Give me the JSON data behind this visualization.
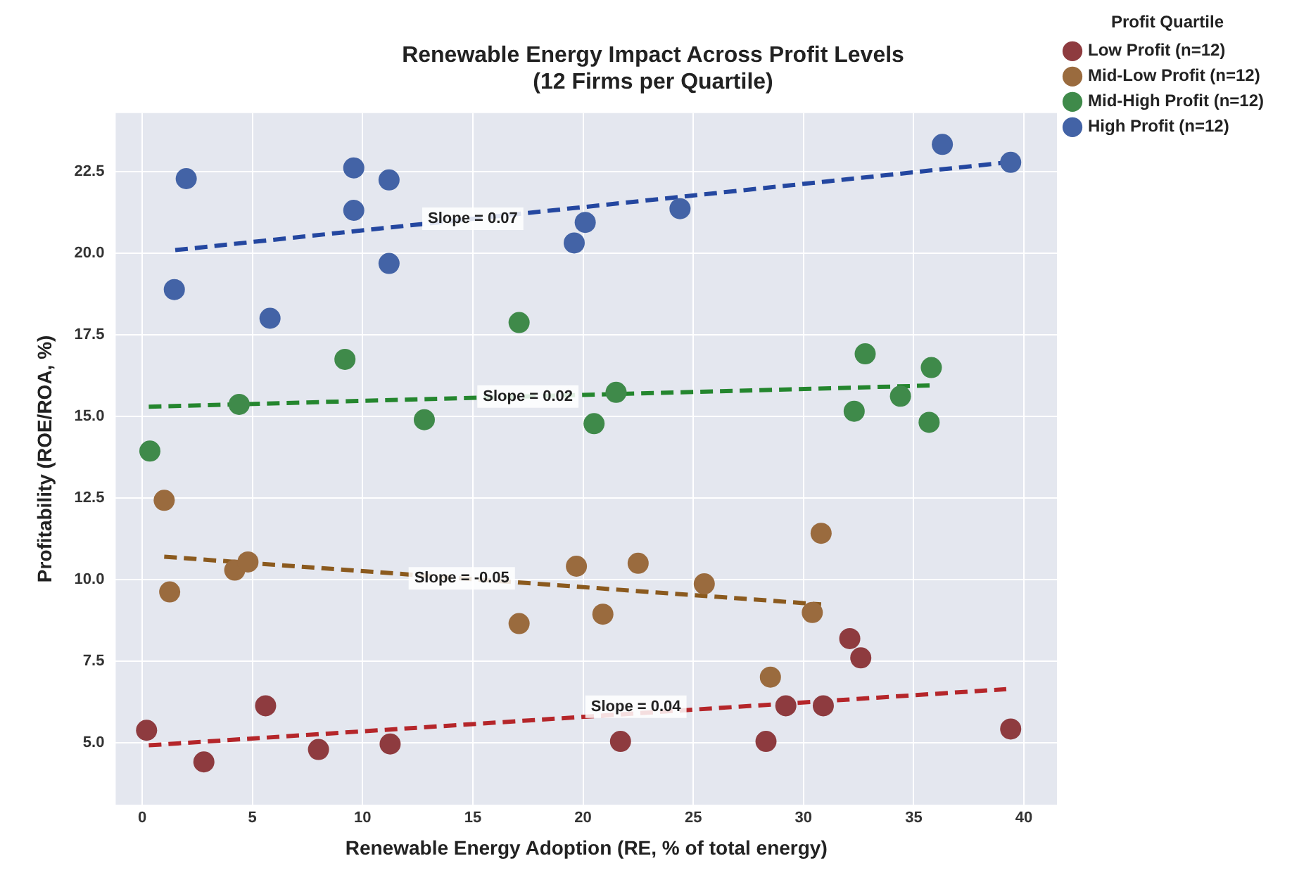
{
  "chart_data": {
    "type": "scatter",
    "title": "Renewable Energy Impact Across Profit Levels\n(12 Firms per Quartile)",
    "xlabel": "Renewable Energy Adoption (RE, % of total energy)",
    "ylabel": "Profitability (ROE/ROA, %)",
    "legend_title": "Profit Quartile",
    "legend": "right",
    "grid": true,
    "marker": "circle",
    "xlim": [
      -1.2,
      41.5
    ],
    "ylim": [
      3.1,
      24.3
    ],
    "xticks": [
      0,
      5,
      10,
      15,
      20,
      25,
      30,
      35,
      40
    ],
    "yticks": [
      {
        "value": 5,
        "label": "5.0"
      },
      {
        "value": 7.5,
        "label": "7.5"
      },
      {
        "value": 10,
        "label": "10.0"
      },
      {
        "value": 12.5,
        "label": "12.5"
      },
      {
        "value": 15,
        "label": "15.0"
      },
      {
        "value": 17.5,
        "label": "17.5"
      },
      {
        "value": 20,
        "label": "20.0"
      },
      {
        "value": 22.5,
        "label": "22.5"
      }
    ],
    "series": [
      {
        "name": "Low Profit (n=12)",
        "color": "#8e3b3f",
        "x": [
          0.2,
          2.8,
          5.6,
          8.0,
          11.25,
          21.7,
          28.3,
          29.2,
          30.9,
          32.1,
          32.6,
          39.4
        ],
        "values": [
          5.38,
          4.41,
          6.13,
          4.79,
          4.96,
          5.04,
          5.04,
          6.13,
          6.13,
          8.19,
          7.6,
          5.42
        ]
      },
      {
        "name": "Mid-Low Profit (n=12)",
        "color": "#9a6b3e",
        "x": [
          1.0,
          1.25,
          4.2,
          4.8,
          17.1,
          19.7,
          20.9,
          22.5,
          25.5,
          28.5,
          30.4,
          30.8
        ],
        "values": [
          12.43,
          9.62,
          10.29,
          10.54,
          8.65,
          10.41,
          8.94,
          10.5,
          9.87,
          7.01,
          8.99,
          11.42
        ]
      },
      {
        "name": "Mid-High Profit (n=12)",
        "color": "#3f8a4a",
        "x": [
          0.35,
          4.4,
          9.2,
          12.8,
          17.1,
          20.5,
          21.5,
          32.3,
          32.8,
          34.4,
          35.7,
          35.8
        ],
        "values": [
          13.94,
          15.37,
          16.75,
          14.9,
          17.88,
          14.78,
          15.74,
          15.16,
          16.92,
          15.62,
          14.82,
          16.5
        ]
      },
      {
        "name": "High Profit (n=12)",
        "color": "#4363a6",
        "x": [
          1.46,
          2.0,
          5.8,
          9.6,
          9.6,
          11.2,
          11.2,
          19.6,
          20.1,
          24.4,
          36.3,
          39.4
        ],
        "values": [
          18.89,
          22.29,
          18.01,
          22.62,
          21.32,
          22.25,
          19.69,
          20.32,
          20.95,
          21.37,
          23.34,
          22.79
        ]
      },
      {
        "type": "line",
        "color": "#b5262a",
        "line_style": "dashed",
        "marker": "none",
        "x": [
          0.3,
          39.2
        ],
        "values": [
          4.92,
          6.64
        ]
      },
      {
        "type": "line",
        "color": "#8b5a1e",
        "line_style": "dashed",
        "marker": "none",
        "x": [
          1.0,
          30.8
        ],
        "values": [
          10.7,
          9.24
        ]
      },
      {
        "type": "line",
        "color": "#24862e",
        "line_style": "dashed",
        "marker": "none",
        "x": [
          0.3,
          35.8
        ],
        "values": [
          15.3,
          15.95
        ]
      },
      {
        "type": "line",
        "color": "#2447a0",
        "line_style": "dashed",
        "marker": "none",
        "x": [
          1.5,
          39.4
        ],
        "values": [
          20.1,
          22.8
        ]
      }
    ],
    "annotations": [
      {
        "text": "Slope = 0.07",
        "x": 15,
        "y": 21.06
      },
      {
        "text": "Slope = 0.02",
        "x": 17.5,
        "y": 15.61
      },
      {
        "text": "Slope = -0.05",
        "x": 14.5,
        "y": 10.04
      },
      {
        "text": "Slope = 0.04",
        "x": 22.4,
        "y": 6.1
      }
    ]
  }
}
